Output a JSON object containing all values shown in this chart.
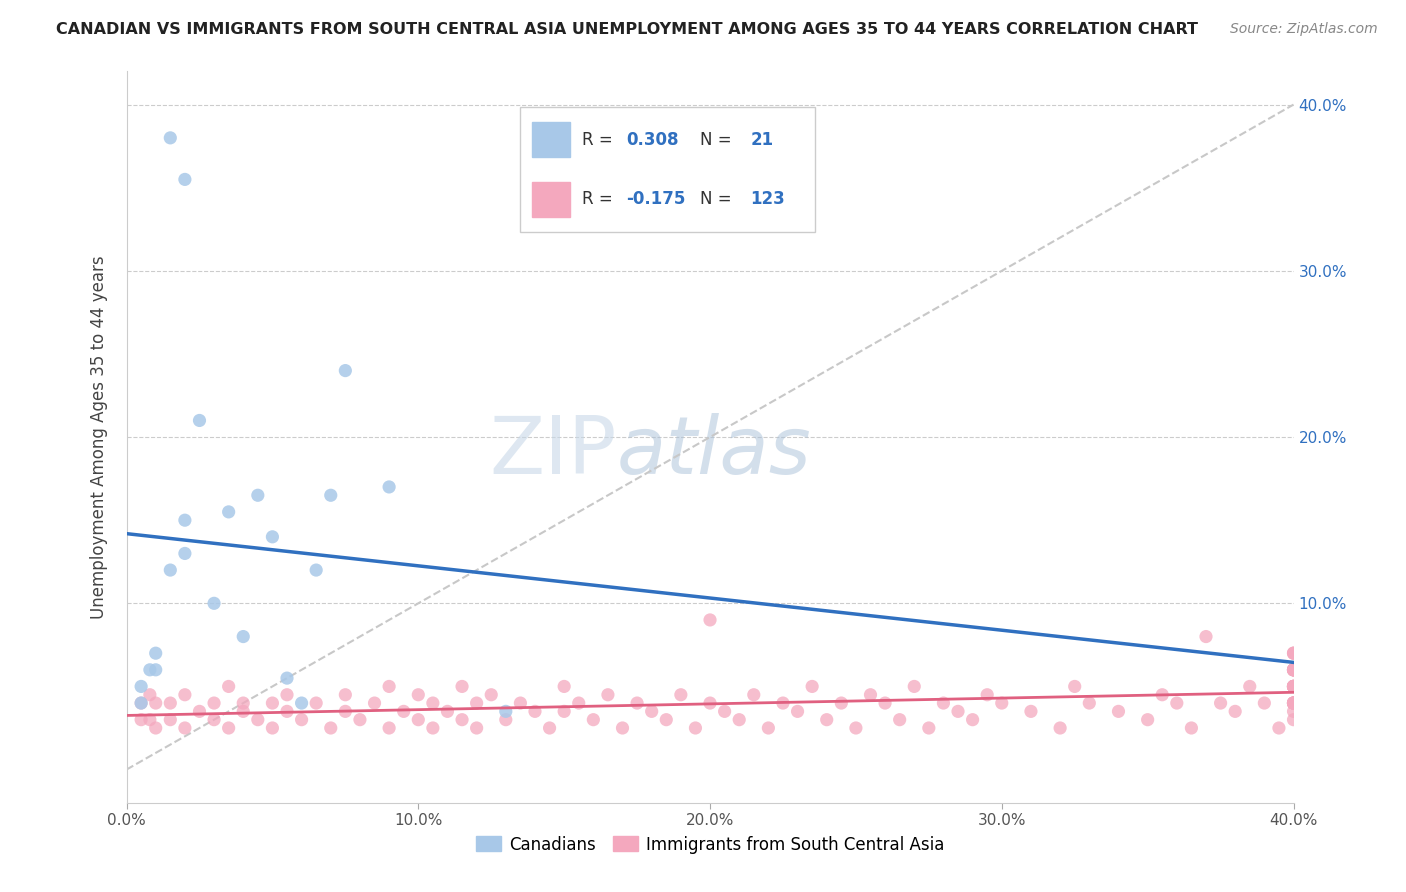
{
  "title": "CANADIAN VS IMMIGRANTS FROM SOUTH CENTRAL ASIA UNEMPLOYMENT AMONG AGES 35 TO 44 YEARS CORRELATION CHART",
  "source": "Source: ZipAtlas.com",
  "ylabel": "Unemployment Among Ages 35 to 44 years",
  "xlim": [
    0.0,
    0.4
  ],
  "ylim": [
    -0.02,
    0.42
  ],
  "xticks": [
    0.0,
    0.1,
    0.2,
    0.3,
    0.4
  ],
  "yticks": [
    0.0,
    0.1,
    0.2,
    0.3,
    0.4
  ],
  "xtick_labels": [
    "0.0%",
    "10.0%",
    "20.0%",
    "30.0%",
    "40.0%"
  ],
  "right_ytick_labels": [
    "",
    "10.0%",
    "20.0%",
    "30.0%",
    "40.0%"
  ],
  "canadian_R": 0.308,
  "canadian_N": 21,
  "immigrant_R": -0.175,
  "immigrant_N": 123,
  "canadian_color": "#a8c8e8",
  "immigrant_color": "#f4a8be",
  "canadian_line_color": "#3070c0",
  "immigrant_line_color": "#e06080",
  "diagonal_color": "#c8c8c8",
  "watermark_zip": "ZIP",
  "watermark_atlas": "atlas",
  "canadian_x": [
    0.005,
    0.005,
    0.008,
    0.01,
    0.01,
    0.015,
    0.02,
    0.02,
    0.025,
    0.03,
    0.035,
    0.04,
    0.045,
    0.05,
    0.055,
    0.06,
    0.065,
    0.07,
    0.075,
    0.09,
    0.13
  ],
  "canadian_y": [
    0.04,
    0.05,
    0.06,
    0.06,
    0.07,
    0.12,
    0.13,
    0.15,
    0.21,
    0.1,
    0.155,
    0.08,
    0.165,
    0.14,
    0.055,
    0.04,
    0.12,
    0.165,
    0.24,
    0.17,
    0.035
  ],
  "canadian_outlier_x": [
    0.015
  ],
  "canadian_outlier_y": [
    0.38
  ],
  "canadian_high_x": [
    0.02
  ],
  "canadian_high_y": [
    0.355
  ],
  "immigrant_x": [
    0.005,
    0.005,
    0.008,
    0.008,
    0.01,
    0.01,
    0.015,
    0.015,
    0.02,
    0.02,
    0.025,
    0.03,
    0.03,
    0.035,
    0.035,
    0.04,
    0.04,
    0.045,
    0.05,
    0.05,
    0.055,
    0.055,
    0.06,
    0.065,
    0.07,
    0.075,
    0.075,
    0.08,
    0.085,
    0.09,
    0.09,
    0.095,
    0.1,
    0.1,
    0.105,
    0.105,
    0.11,
    0.115,
    0.115,
    0.12,
    0.12,
    0.125,
    0.13,
    0.135,
    0.14,
    0.145,
    0.15,
    0.15,
    0.155,
    0.16,
    0.165,
    0.17,
    0.175,
    0.18,
    0.185,
    0.19,
    0.195,
    0.2,
    0.2,
    0.205,
    0.21,
    0.215,
    0.22,
    0.225,
    0.23,
    0.235,
    0.24,
    0.245,
    0.25,
    0.255,
    0.26,
    0.265,
    0.27,
    0.275,
    0.28,
    0.285,
    0.29,
    0.295,
    0.3,
    0.31,
    0.32,
    0.325,
    0.33,
    0.34,
    0.35,
    0.355,
    0.36,
    0.365,
    0.37,
    0.375,
    0.38,
    0.385,
    0.39,
    0.395,
    0.4,
    0.4,
    0.4,
    0.4,
    0.4,
    0.4,
    0.4,
    0.4,
    0.4,
    0.4,
    0.4,
    0.4,
    0.4,
    0.4,
    0.4,
    0.4,
    0.4,
    0.4,
    0.4,
    0.4,
    0.4,
    0.4,
    0.4,
    0.4,
    0.4,
    0.4,
    0.4,
    0.4,
    0.4
  ],
  "immigrant_y": [
    0.03,
    0.04,
    0.03,
    0.045,
    0.025,
    0.04,
    0.03,
    0.04,
    0.025,
    0.045,
    0.035,
    0.03,
    0.04,
    0.025,
    0.05,
    0.035,
    0.04,
    0.03,
    0.025,
    0.04,
    0.035,
    0.045,
    0.03,
    0.04,
    0.025,
    0.035,
    0.045,
    0.03,
    0.04,
    0.025,
    0.05,
    0.035,
    0.03,
    0.045,
    0.025,
    0.04,
    0.035,
    0.03,
    0.05,
    0.04,
    0.025,
    0.045,
    0.03,
    0.04,
    0.035,
    0.025,
    0.035,
    0.05,
    0.04,
    0.03,
    0.045,
    0.025,
    0.04,
    0.035,
    0.03,
    0.045,
    0.025,
    0.04,
    0.09,
    0.035,
    0.03,
    0.045,
    0.025,
    0.04,
    0.035,
    0.05,
    0.03,
    0.04,
    0.025,
    0.045,
    0.04,
    0.03,
    0.05,
    0.025,
    0.04,
    0.035,
    0.03,
    0.045,
    0.04,
    0.035,
    0.025,
    0.05,
    0.04,
    0.035,
    0.03,
    0.045,
    0.04,
    0.025,
    0.08,
    0.04,
    0.035,
    0.05,
    0.04,
    0.025,
    0.035,
    0.05,
    0.04,
    0.06,
    0.03,
    0.04,
    0.05,
    0.04,
    0.06,
    0.04,
    0.05,
    0.07,
    0.04,
    0.05,
    0.06,
    0.04,
    0.05,
    0.04,
    0.06,
    0.05,
    0.07,
    0.04,
    0.05,
    0.06,
    0.07,
    0.05,
    0.06,
    0.05,
    0.06
  ]
}
